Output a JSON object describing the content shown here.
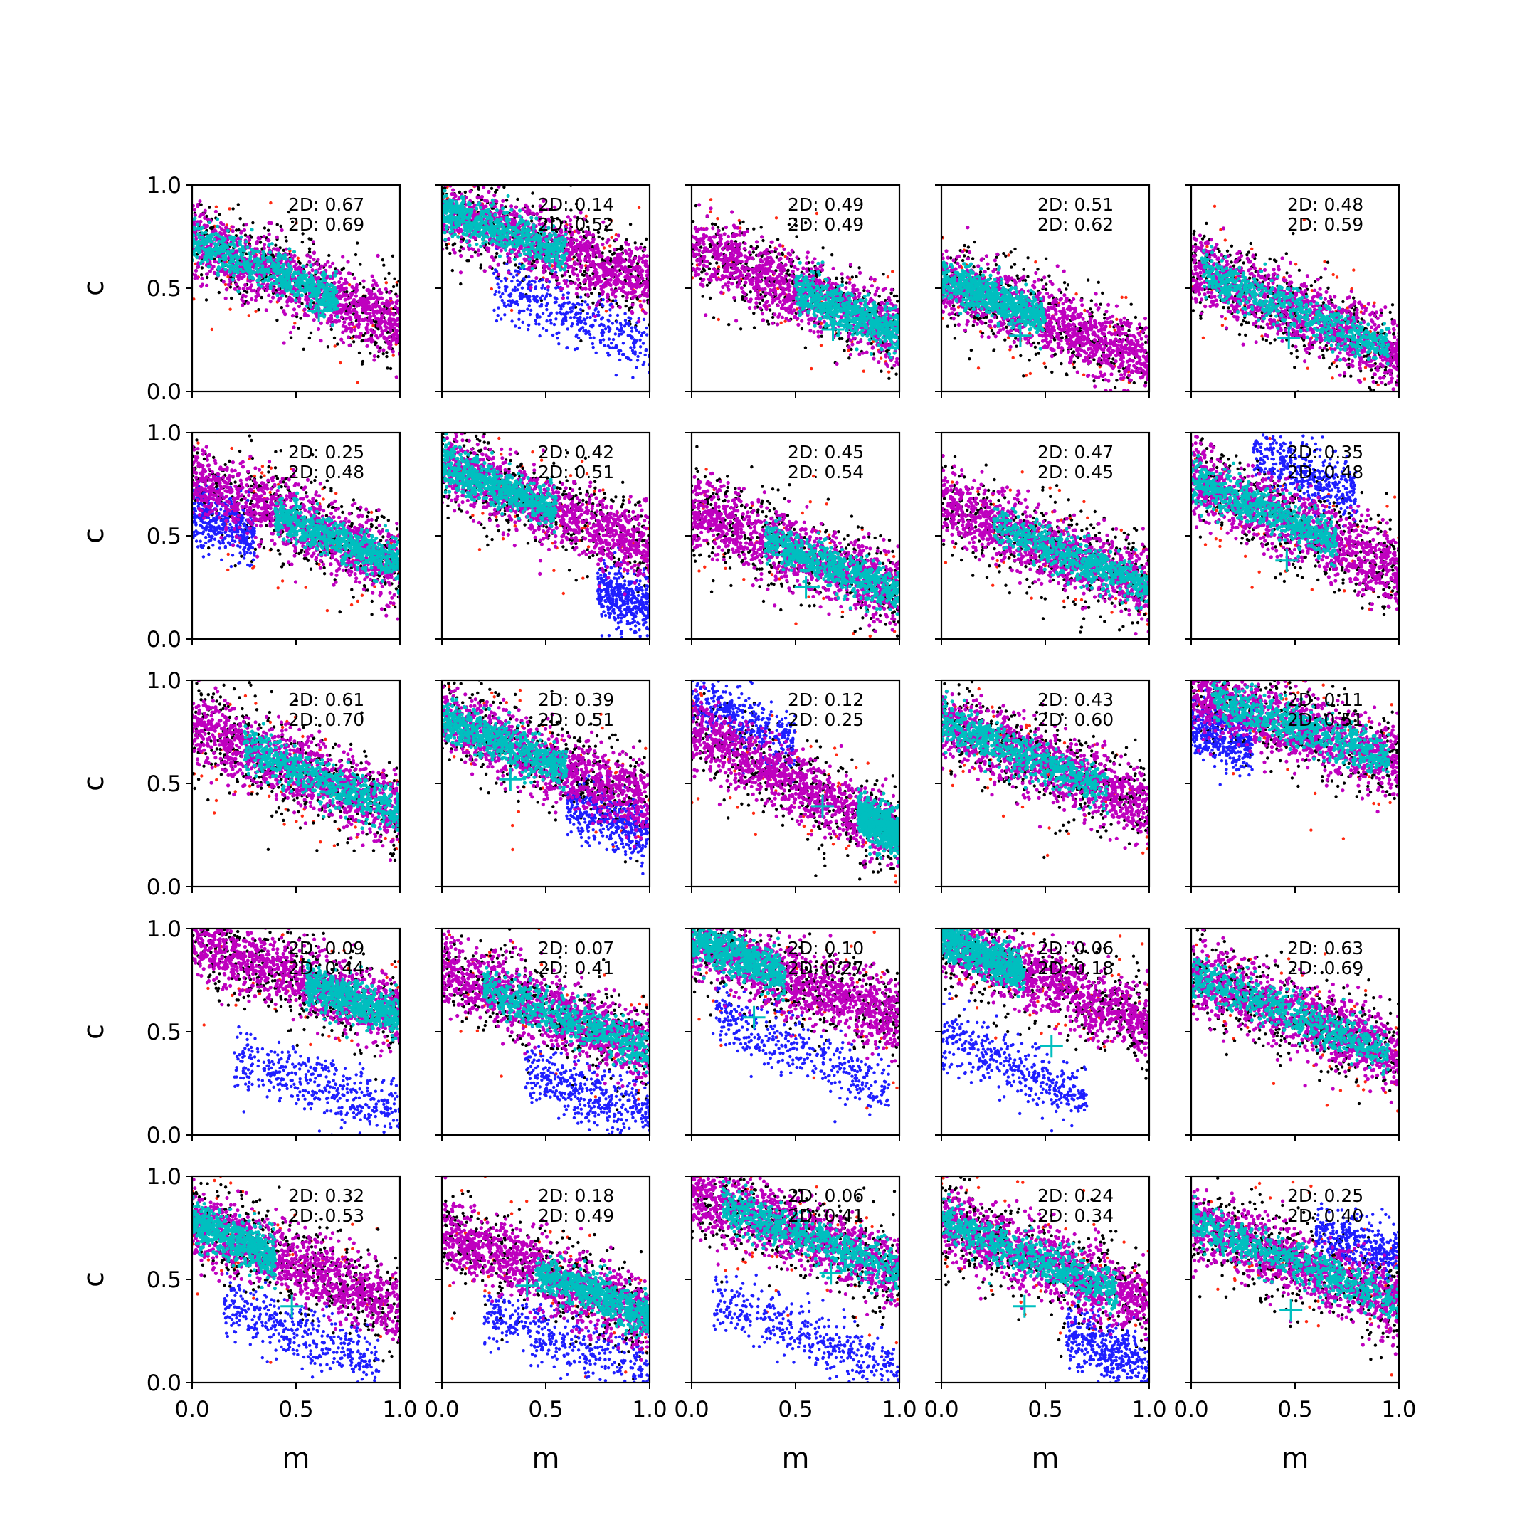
{
  "chart_data": {
    "type": "scatter",
    "grid": {
      "rows": 5,
      "cols": 5
    },
    "xlabel": "m",
    "ylabel": "c",
    "xlim": [
      0,
      1
    ],
    "ylim": [
      0,
      1
    ],
    "xticks": [
      "0.0",
      "0.5",
      "1.0"
    ],
    "yticks": [
      "0.0",
      "0.5",
      "1.0"
    ],
    "grid_lines": false,
    "legend": "none",
    "colors": {
      "outer_red": "#ff2a12",
      "outer_black": "#000000",
      "outlier_blue": "#1f1fff",
      "band_magenta": "#bf00bf",
      "core_cyan": "#00bfbf",
      "marker": "#00bfbf"
    },
    "panels": [
      {
        "row": 0,
        "col": 0,
        "label1": "2D: 0.67",
        "label2": "2D: 0.69",
        "slope": -0.42,
        "c0": 0.74,
        "cyan_range": [
          0,
          0.7
        ],
        "marker": [
          0.61,
          0.39
        ],
        "blue": null
      },
      {
        "row": 0,
        "col": 1,
        "label1": "2D: 0.14",
        "label2": "2D: 0.52",
        "slope": -0.35,
        "c0": 0.88,
        "cyan_range": [
          0,
          0.6
        ],
        "marker": null,
        "blue": {
          "x": [
            0.25,
            1.0
          ],
          "c0": 0.62,
          "slope": -0.4
        }
      },
      {
        "row": 0,
        "col": 2,
        "label1": "2D: 0.49",
        "label2": "2D: 0.49",
        "slope": -0.42,
        "c0": 0.7,
        "cyan_range": [
          0.5,
          1.0
        ],
        "marker": [
          0.68,
          0.3
        ],
        "blue": null
      },
      {
        "row": 0,
        "col": 3,
        "label1": "2D: 0.51",
        "label2": "2D: 0.62",
        "slope": -0.4,
        "c0": 0.55,
        "cyan_range": [
          0,
          0.5
        ],
        "marker": [
          0.38,
          0.27
        ],
        "blue": null
      },
      {
        "row": 0,
        "col": 4,
        "label1": "2D: 0.48",
        "label2": "2D: 0.59",
        "slope": -0.42,
        "c0": 0.6,
        "cyan_range": [
          0.05,
          0.95
        ],
        "marker": [
          0.47,
          0.26
        ],
        "blue": null
      },
      {
        "row": 1,
        "col": 0,
        "label1": "2D: 0.25",
        "label2": "2D: 0.48",
        "slope": -0.42,
        "c0": 0.78,
        "cyan_range": [
          0.4,
          1.0
        ],
        "marker": null,
        "blue": {
          "x": [
            0,
            0.3
          ],
          "c0": 0.62,
          "slope": -0.4
        }
      },
      {
        "row": 1,
        "col": 1,
        "label1": "2D: 0.42",
        "label2": "2D: 0.51",
        "slope": -0.42,
        "c0": 0.85,
        "cyan_range": [
          0,
          0.55
        ],
        "marker": null,
        "blue": {
          "x": [
            0.75,
            1.0
          ],
          "c0": 0.55,
          "slope": -0.4
        }
      },
      {
        "row": 1,
        "col": 2,
        "label1": "2D: 0.45",
        "label2": "2D: 0.54",
        "slope": -0.4,
        "c0": 0.62,
        "cyan_range": [
          0.35,
          1.0
        ],
        "marker": [
          0.55,
          0.25
        ],
        "blue": null
      },
      {
        "row": 1,
        "col": 3,
        "label1": "2D: 0.47",
        "label2": "2D: 0.45",
        "slope": -0.4,
        "c0": 0.65,
        "cyan_range": [
          0.25,
          1.0
        ],
        "marker": null,
        "blue": null
      },
      {
        "row": 1,
        "col": 4,
        "label1": "2D: 0.35",
        "label2": "2D: 0.48",
        "slope": -0.45,
        "c0": 0.78,
        "cyan_range": [
          0,
          0.7
        ],
        "marker": [
          0.46,
          0.38
        ],
        "blue": {
          "x": [
            0.3,
            0.8
          ],
          "c0": 1.05,
          "slope": -0.45
        }
      },
      {
        "row": 2,
        "col": 0,
        "label1": "2D: 0.61",
        "label2": "2D: 0.70",
        "slope": -0.42,
        "c0": 0.78,
        "cyan_range": [
          0.25,
          1.0
        ],
        "marker": null,
        "blue": null
      },
      {
        "row": 2,
        "col": 1,
        "label1": "2D: 0.39",
        "label2": "2D: 0.51",
        "slope": -0.42,
        "c0": 0.82,
        "cyan_range": [
          0,
          0.6
        ],
        "marker": [
          0.33,
          0.52
        ],
        "blue": {
          "x": [
            0.6,
            1.0
          ],
          "c0": 0.6,
          "slope": -0.35
        }
      },
      {
        "row": 2,
        "col": 2,
        "label1": "2D: 0.12",
        "label2": "2D: 0.25",
        "slope": -0.5,
        "c0": 0.75,
        "cyan_range": [
          0.8,
          1.0
        ],
        "marker": [
          0.63,
          0.39
        ],
        "blue": {
          "x": [
            0,
            0.5
          ],
          "c0": 0.9,
          "slope": -0.4
        }
      },
      {
        "row": 2,
        "col": 3,
        "label1": "2D: 0.43",
        "label2": "2D: 0.60",
        "slope": -0.42,
        "c0": 0.8,
        "cyan_range": [
          0,
          0.8
        ],
        "marker": null,
        "blue": null
      },
      {
        "row": 2,
        "col": 4,
        "label1": "2D: 0.11",
        "label2": "2D: 0.51",
        "slope": -0.35,
        "c0": 0.95,
        "cyan_range": [
          0.1,
          0.95
        ],
        "marker": null,
        "blue": {
          "x": [
            0,
            0.3
          ],
          "c0": 0.78,
          "slope": -0.3
        }
      },
      {
        "row": 3,
        "col": 0,
        "label1": "2D: 0.09",
        "label2": "2D: 0.44",
        "slope": -0.38,
        "c0": 0.95,
        "cyan_range": [
          0.55,
          1.0
        ],
        "marker": [
          0.58,
          0.7
        ],
        "blue": {
          "x": [
            0.2,
            1.0
          ],
          "c0": 0.45,
          "slope": -0.35
        }
      },
      {
        "row": 3,
        "col": 1,
        "label1": "2D: 0.07",
        "label2": "2D: 0.41",
        "slope": -0.4,
        "c0": 0.8,
        "cyan_range": [
          0.2,
          1.0
        ],
        "marker": null,
        "blue": {
          "x": [
            0.4,
            1.0
          ],
          "c0": 0.45,
          "slope": -0.35
        }
      },
      {
        "row": 3,
        "col": 2,
        "label1": "2D: 0.10",
        "label2": "2D: 0.27",
        "slope": -0.4,
        "c0": 0.95,
        "cyan_range": [
          0,
          0.45
        ],
        "marker": [
          0.3,
          0.57
        ],
        "blue": {
          "x": [
            0.1,
            0.95
          ],
          "c0": 0.65,
          "slope": -0.45
        }
      },
      {
        "row": 3,
        "col": 3,
        "label1": "2D: 0.06",
        "label2": "2D: 0.18",
        "slope": -0.42,
        "c0": 0.95,
        "cyan_range": [
          0,
          0.4
        ],
        "marker": [
          0.53,
          0.43
        ],
        "blue": {
          "x": [
            0,
            0.7
          ],
          "c0": 0.48,
          "slope": -0.45
        }
      },
      {
        "row": 3,
        "col": 4,
        "label1": "2D: 0.63",
        "label2": "2D: 0.69",
        "slope": -0.4,
        "c0": 0.78,
        "cyan_range": [
          0,
          0.95
        ],
        "marker": null,
        "blue": null
      },
      {
        "row": 4,
        "col": 0,
        "label1": "2D: 0.32",
        "label2": "2D: 0.53",
        "slope": -0.42,
        "c0": 0.78,
        "cyan_range": [
          0,
          0.4
        ],
        "marker": [
          0.48,
          0.37
        ],
        "blue": {
          "x": [
            0.15,
            0.9
          ],
          "c0": 0.42,
          "slope": -0.35
        }
      },
      {
        "row": 4,
        "col": 1,
        "label1": "2D: 0.18",
        "label2": "2D: 0.49",
        "slope": -0.4,
        "c0": 0.72,
        "cyan_range": [
          0.45,
          1.0
        ],
        "marker": [
          0.41,
          0.47
        ],
        "blue": {
          "x": [
            0.2,
            1.0
          ],
          "c0": 0.4,
          "slope": -0.35
        }
      },
      {
        "row": 4,
        "col": 2,
        "label1": "2D: 0.06",
        "label2": "2D: 0.41",
        "slope": -0.38,
        "c0": 0.92,
        "cyan_range": [
          0.15,
          1.0
        ],
        "marker": [
          0.67,
          0.53
        ],
        "blue": {
          "x": [
            0.1,
            1.0
          ],
          "c0": 0.45,
          "slope": -0.4
        }
      },
      {
        "row": 4,
        "col": 3,
        "label1": "2D: 0.24",
        "label2": "2D: 0.34",
        "slope": -0.4,
        "c0": 0.78,
        "cyan_range": [
          0,
          0.85
        ],
        "marker": [
          0.4,
          0.37
        ],
        "blue": {
          "x": [
            0.6,
            1.0
          ],
          "c0": 0.48,
          "slope": -0.4
        }
      },
      {
        "row": 4,
        "col": 4,
        "label1": "2D: 0.25",
        "label2": "2D: 0.40",
        "slope": -0.4,
        "c0": 0.78,
        "cyan_range": [
          0,
          1.0
        ],
        "marker": [
          0.48,
          0.35
        ],
        "blue": {
          "x": [
            0.6,
            1.0
          ],
          "c0": 0.9,
          "slope": -0.3
        }
      }
    ]
  }
}
